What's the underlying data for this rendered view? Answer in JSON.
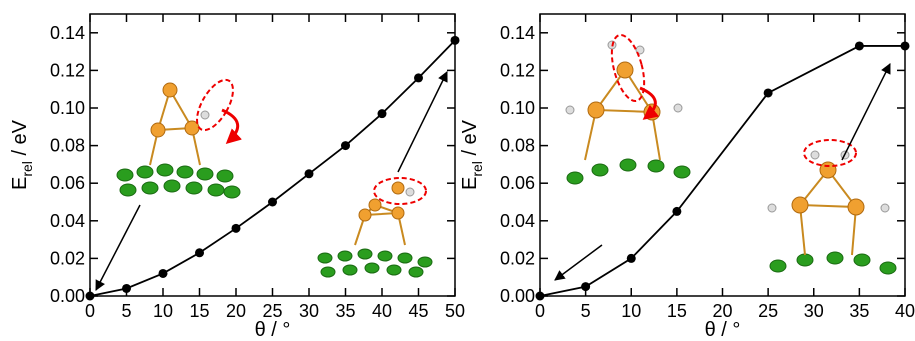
{
  "charts": [
    {
      "type": "line",
      "xlabel": "θ / °",
      "ylabel": {
        "main": "E",
        "sub": "rel",
        "rest": " / eV"
      },
      "x": [
        0,
        5,
        10,
        15,
        20,
        25,
        30,
        35,
        40,
        45,
        50
      ],
      "color": "#000000",
      "values": [
        0.0,
        0.004,
        0.012,
        0.023,
        0.036,
        0.05,
        0.065,
        0.08,
        0.097,
        0.116,
        0.136
      ],
      "xlim": [
        0,
        50
      ],
      "xticks": [
        0,
        5,
        10,
        15,
        20,
        25,
        30,
        35,
        40,
        45,
        50
      ],
      "ylim": [
        0,
        0.15
      ],
      "yticks": [
        {
          "value": 0,
          "label": "0.00"
        },
        {
          "value": 0.02,
          "label": "0.02"
        },
        {
          "value": 0.04,
          "label": "0.04"
        },
        {
          "value": 0.06,
          "label": "0.06"
        },
        {
          "value": 0.08,
          "label": "0.08"
        },
        {
          "value": 0.1,
          "label": "0.10"
        },
        {
          "value": 0.12,
          "label": "0.12"
        },
        {
          "value": 0.14,
          "label": "0.14"
        }
      ]
    },
    {
      "type": "line",
      "xlabel": "θ / °",
      "ylabel": {
        "main": "E",
        "sub": "rel",
        "rest": " / eV"
      },
      "x": [
        0,
        5,
        10,
        15,
        25,
        35,
        40
      ],
      "color": "#000000",
      "values": [
        0.0,
        0.005,
        0.02,
        0.045,
        0.108,
        0.133,
        0.133
      ],
      "xlim": [
        0,
        40
      ],
      "xticks": [
        0,
        5,
        10,
        15,
        20,
        25,
        30,
        35,
        40
      ],
      "ylim": [
        0,
        0.15
      ],
      "yticks": [
        {
          "value": 0,
          "label": "0.00"
        },
        {
          "value": 0.02,
          "label": "0.02"
        },
        {
          "value": 0.04,
          "label": "0.04"
        },
        {
          "value": 0.06,
          "label": "0.06"
        },
        {
          "value": 0.08,
          "label": "0.08"
        },
        {
          "value": 0.1,
          "label": "0.10"
        },
        {
          "value": 0.12,
          "label": "0.12"
        },
        {
          "value": 0.14,
          "label": "0.14"
        }
      ]
    }
  ]
}
